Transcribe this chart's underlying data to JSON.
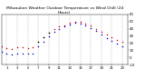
{
  "title": "Milwaukee Weather Outdoor Temperature vs Wind Chill (24 Hours)",
  "title_fontsize": 3.2,
  "background_color": "#ffffff",
  "ylim": [
    -10,
    60
  ],
  "xlim": [
    0,
    24
  ],
  "hours": [
    0,
    1,
    2,
    3,
    4,
    5,
    6,
    7,
    8,
    9,
    10,
    11,
    12,
    13,
    14,
    15,
    16,
    17,
    18,
    19,
    20,
    21,
    22,
    23
  ],
  "temp": [
    15,
    13,
    12,
    14,
    14,
    13,
    14,
    22,
    28,
    35,
    40,
    43,
    45,
    48,
    50,
    49,
    47,
    44,
    40,
    36,
    32,
    28,
    25,
    22
  ],
  "wind_chill": [
    8,
    6,
    4,
    6,
    6,
    5,
    5,
    16,
    22,
    30,
    36,
    40,
    43,
    46,
    48,
    47,
    44,
    41,
    37,
    32,
    27,
    23,
    19,
    16
  ],
  "temp_color": "#dd0000",
  "wind_chill_color": "#0000cc",
  "black_color": "#000000",
  "grid_color": "#bbbbbb",
  "tick_fontsize": 2.8,
  "ytick_values": [
    -10,
    0,
    10,
    20,
    30,
    40,
    50,
    60
  ],
  "ytick_labels": [
    "-10",
    "0",
    "10",
    "20",
    "30",
    "40",
    "50",
    "60"
  ],
  "xtick_values": [
    1,
    3,
    5,
    7,
    9,
    11,
    13,
    15,
    17,
    19,
    21,
    23
  ],
  "xtick_labels": [
    "1",
    "3",
    "5",
    "7",
    "9",
    "11",
    "13",
    "15",
    "17",
    "19",
    "21",
    "23"
  ],
  "vgrid_positions": [
    1,
    3,
    5,
    7,
    9,
    11,
    13,
    15,
    17,
    19,
    21,
    23
  ],
  "dot_size": 1.2
}
